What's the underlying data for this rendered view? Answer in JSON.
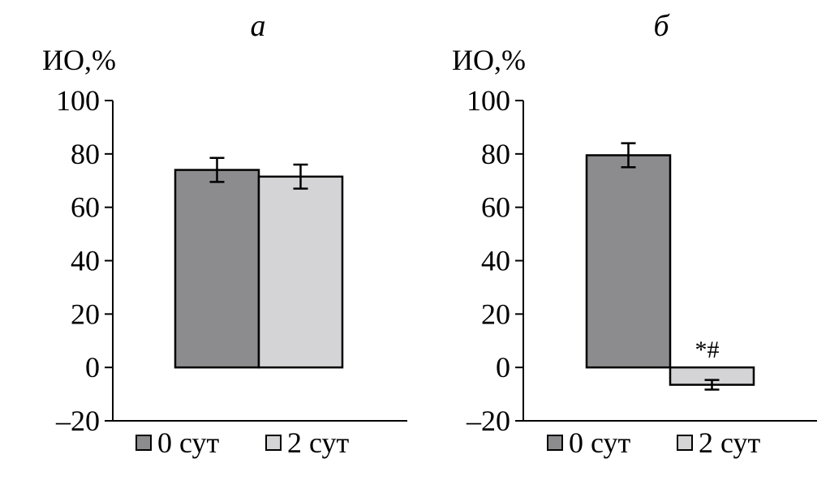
{
  "colors": {
    "series_0": "#8c8c8e",
    "series_1": "#d4d4d6",
    "stroke": "#000000"
  },
  "chart_data": [
    {
      "type": "bar",
      "title": "а",
      "ylabel": "ИО,%",
      "xlabel": "",
      "ylim": [
        -20,
        100
      ],
      "yticks": [
        100,
        80,
        60,
        40,
        20,
        0,
        -20
      ],
      "ytick_labels": [
        "100",
        "80",
        "60",
        "40",
        "20",
        "0",
        "–20"
      ],
      "grid": false,
      "categories": [
        ""
      ],
      "series": [
        {
          "name": "0 сут",
          "values": [
            74
          ],
          "error": [
            4.5
          ]
        },
        {
          "name": "2 сут",
          "values": [
            71.5
          ],
          "error": [
            4.5
          ]
        }
      ],
      "annotations": [],
      "legend": {
        "position": "bottom",
        "entries": [
          "0 сут",
          "2 сут"
        ]
      }
    },
    {
      "type": "bar",
      "title": "б",
      "ylabel": "ИО,%",
      "xlabel": "",
      "ylim": [
        -20,
        100
      ],
      "yticks": [
        100,
        80,
        60,
        40,
        20,
        0,
        -20
      ],
      "ytick_labels": [
        "100",
        "80",
        "60",
        "40",
        "20",
        "0",
        "–20"
      ],
      "grid": false,
      "categories": [
        ""
      ],
      "series": [
        {
          "name": "0 сут",
          "values": [
            79.5
          ],
          "error": [
            4.5
          ]
        },
        {
          "name": "2 сут",
          "values": [
            -6.5
          ],
          "error": [
            1.8
          ]
        }
      ],
      "annotations": [
        {
          "series": 1,
          "text": "*#"
        }
      ],
      "legend": {
        "position": "bottom",
        "entries": [
          "0 сут",
          "2 сут"
        ]
      }
    }
  ]
}
